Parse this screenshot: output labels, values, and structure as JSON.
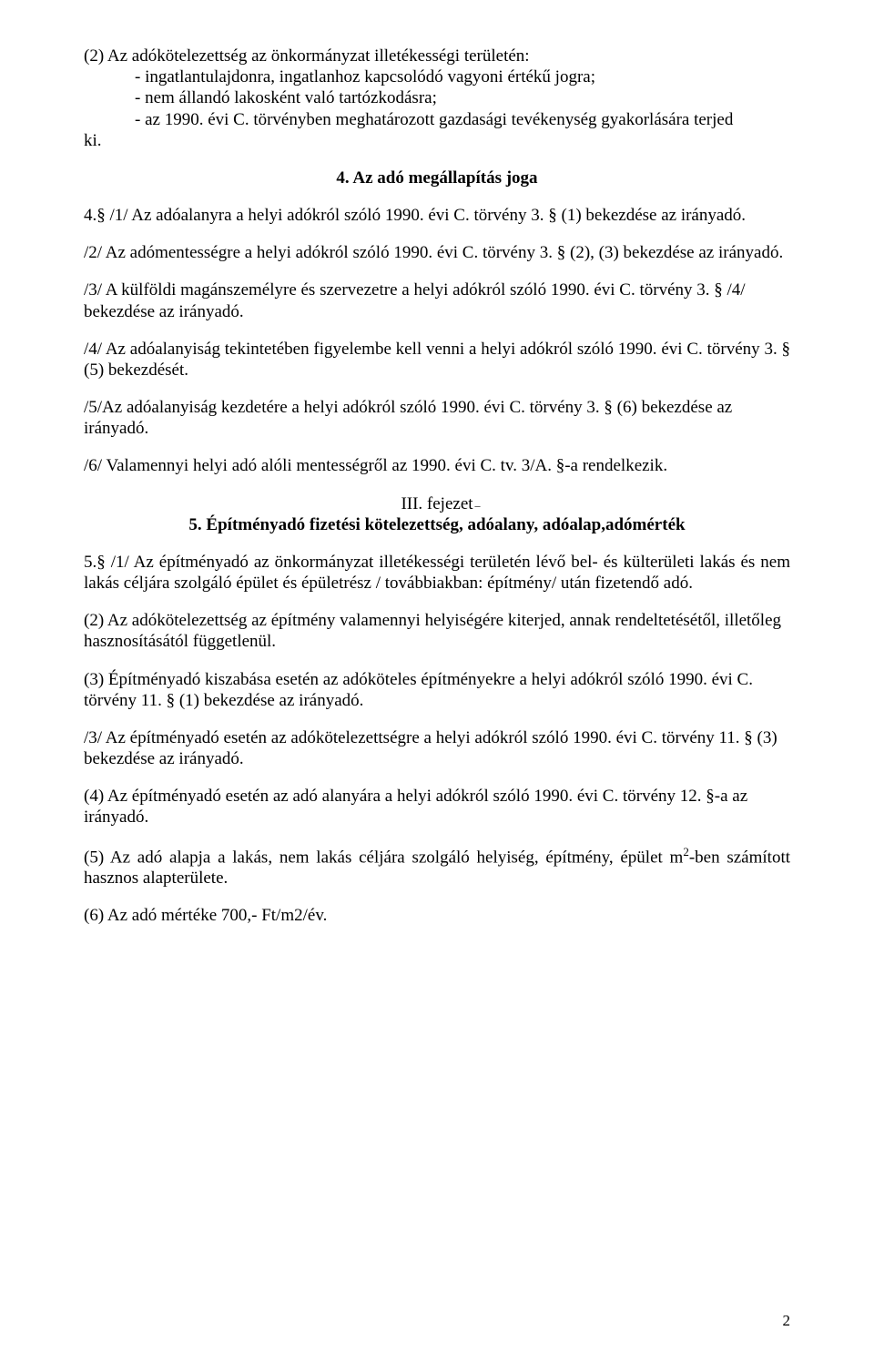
{
  "para2": "(2) Az adókötelezettség az önkormányzat illetékességi területén:",
  "bullets": {
    "b1": "- ingatlantulajdonra, ingatlanhoz kapcsolódó vagyoni értékű jogra;",
    "b2": "- nem állandó lakosként való tartózkodásra;",
    "b3": "- az 1990. évi C. törvényben meghatározott gazdasági tevékenység gyakorlására terjed"
  },
  "ki": "ki.",
  "heading4": "4. Az adó megállapítás joga",
  "p4_1": "4.§ /1/ Az adóalanyra a helyi adókról szóló 1990. évi C. törvény 3. § (1) bekezdése az irányadó.",
  "p4_2": "/2/ Az adómentességre a helyi adókról szóló 1990. évi C. törvény 3. § (2), (3) bekezdése az irányadó.",
  "p4_3": "/3/ A külföldi magánszemélyre és szervezetre a helyi adókról szóló 1990. évi C. törvény 3. § /4/  bekezdése az irányadó.",
  "p4_4": "/4/ Az adóalanyiság tekintetében figyelembe kell venni a helyi adókról szóló 1990. évi C. törvény 3. § (5) bekezdését.",
  "p4_5": "/5/Az adóalanyiság kezdetére a helyi adókról szóló 1990. évi C. törvény 3. § (6) bekezdése az irányadó.",
  "p4_6": "/6/ Valamennyi helyi adó alóli mentességről az 1990. évi C. tv. 3/A. §-a rendelkezik.",
  "chapter3": "III. fejezet",
  "section5": "5. Építményadó fizetési kötelezettség, adóalany, adóalap,adómérték",
  "p5_1": "5.§ /1/ Az építményadó az önkormányzat illetékességi területén lévő bel- és külterületi lakás és nem lakás céljára szolgáló épület és épületrész / továbbiakban: építmény/ után fizetendő adó.",
  "p5_2": "(2) Az adókötelezettség az építmény valamennyi helyiségére kiterjed, annak rendeltetésétől, illetőleg hasznosításától függetlenül.",
  "p5_3": "(3) Építményadó kiszabása esetén az adóköteles építményekre a helyi adókról szóló 1990. évi C. törvény 11. § (1) bekezdése az irányadó.",
  "p5_3b": "/3/ Az építményadó esetén az adókötelezettségre a helyi adókról szóló 1990. évi C. törvény 11. § (3) bekezdése az irányadó.",
  "p5_4": "(4) Az építményadó esetén az adó alanyára a helyi adókról szóló 1990. évi C. törvény 12. §-a az irányadó.",
  "p5_5a": "(5) Az adó alapja a lakás, nem lakás céljára szolgáló helyiség, építmény, épület m",
  "p5_5sup": "2",
  "p5_5b": "-ben számított hasznos alapterülete.",
  "p5_6": "(6) Az adó mértéke 700,- Ft/m2/év.",
  "pagenum": "2"
}
